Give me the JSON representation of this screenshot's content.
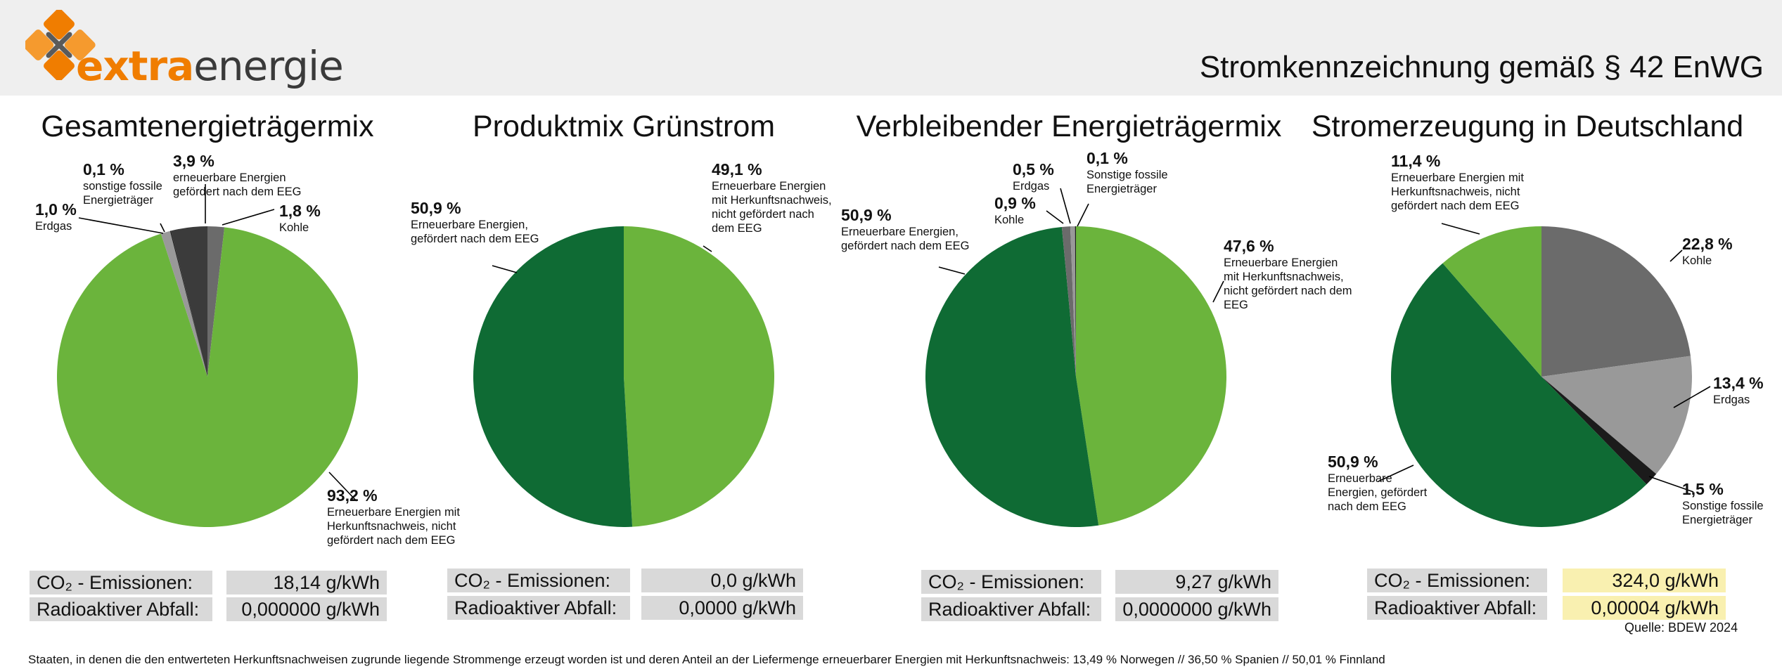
{
  "header": {
    "logo_text_1": "extra",
    "logo_text_2": "energie",
    "title": "Stromkennzeichnung gemäß § 42 EnWG"
  },
  "colors": {
    "light_green": "#6bb43c",
    "dark_green": "#0f6b34",
    "black": "#1b1b1b",
    "dark_gray": "#3b3b3b",
    "mid_gray": "#6b6b6b",
    "light_gray": "#999999",
    "orange": "#f07d00"
  },
  "chart_data": [
    {
      "type": "pie",
      "title": "Gesamtenergieträgermix",
      "slices": [
        {
          "value": 1.8,
          "pct_label": "1,8 %",
          "desc": "Kohle",
          "color": "#6b6b6b"
        },
        {
          "value": 93.2,
          "pct_label": "93,2 %",
          "desc": "Erneuerbare Energien mit Herkunftsnachweis, nicht gefördert nach dem EEG",
          "color": "#6bb43c"
        },
        {
          "value": 1.0,
          "pct_label": "1,0 %",
          "desc": "Erdgas",
          "color": "#999999"
        },
        {
          "value": 0.1,
          "pct_label": "0,1 %",
          "desc": "sonstige fossile Energieträger",
          "color": "#1b1b1b"
        },
        {
          "value": 3.9,
          "pct_label": "3,9 %",
          "desc": "erneuerbare Energien gefördert nach dem EEG",
          "color": "#3b3b3b"
        }
      ],
      "co2_label": "CO₂ - Emissionen:",
      "co2_value": "18,14 g/kWh",
      "waste_label": "Radioaktiver Abfall:",
      "waste_value": "0,000000 g/kWh"
    },
    {
      "type": "pie",
      "title": "Produktmix Grünstrom",
      "slices": [
        {
          "value": 49.1,
          "pct_label": "49,1 %",
          "desc": "Erneuerbare Energien mit Herkunftsnachweis, nicht gefördert nach dem EEG",
          "color": "#6bb43c"
        },
        {
          "value": 50.9,
          "pct_label": "50,9 %",
          "desc": "Erneuerbare Energien, gefördert nach dem EEG",
          "color": "#0f6b34"
        }
      ],
      "co2_label": "CO₂ - Emissionen:",
      "co2_value": "0,0 g/kWh",
      "waste_label": "Radioaktiver Abfall:",
      "waste_value": "0,0000 g/kWh"
    },
    {
      "type": "pie",
      "title": "Verbleibender Energieträgermix",
      "slices": [
        {
          "value": 47.6,
          "pct_label": "47,6 %",
          "desc": "Erneuerbare Energien mit Herkunftsnachweis, nicht gefördert nach dem EEG",
          "color": "#6bb43c"
        },
        {
          "value": 50.9,
          "pct_label": "50,9 %",
          "desc": "Erneuerbare Energien, gefördert nach dem EEG",
          "color": "#0f6b34"
        },
        {
          "value": 0.9,
          "pct_label": "0,9 %",
          "desc": "Kohle",
          "color": "#6b6b6b"
        },
        {
          "value": 0.5,
          "pct_label": "0,5 %",
          "desc": "Erdgas",
          "color": "#999999"
        },
        {
          "value": 0.1,
          "pct_label": "0,1 %",
          "desc": "Sonstige fossile Energieträger",
          "color": "#1b1b1b"
        }
      ],
      "co2_label": "CO₂ - Emissionen:",
      "co2_value": "9,27 g/kWh",
      "waste_label": "Radioaktiver Abfall:",
      "waste_value": "0,0000000 g/kWh"
    },
    {
      "type": "pie",
      "title": "Stromerzeugung in Deutschland",
      "slices": [
        {
          "value": 22.8,
          "pct_label": "22,8 %",
          "desc": "Kohle",
          "color": "#6b6b6b"
        },
        {
          "value": 13.4,
          "pct_label": "13,4 %",
          "desc": "Erdgas",
          "color": "#999999"
        },
        {
          "value": 1.5,
          "pct_label": "1,5 %",
          "desc": "Sonstige fossile Energieträger",
          "color": "#1b1b1b"
        },
        {
          "value": 50.9,
          "pct_label": "50,9 %",
          "desc": "Erneuerbare Energien, gefördert nach dem EEG",
          "color": "#0f6b34"
        },
        {
          "value": 11.4,
          "pct_label": "11,4 %",
          "desc": "Erneuerbare Energien mit Herkunftsnachweis, nicht gefördert nach dem EEG",
          "color": "#6bb43c"
        }
      ],
      "co2_label": "CO₂ - Emissionen:",
      "co2_value": "324,0 g/kWh",
      "waste_label": "Radioaktiver Abfall:",
      "waste_value": "0,00004 g/kWh",
      "source": "Quelle: BDEW 2024"
    }
  ],
  "footnote": "Staaten, in denen die den entwerteten Herkunftsnachweisen zugrunde liegende Strommenge erzeugt worden ist und deren Anteil an der Liefermenge erneuerbarer Energien mit Herkunftsnachweis: 13,49 % Norwegen // 36,50 % Spanien // 50,01 % Finnland"
}
